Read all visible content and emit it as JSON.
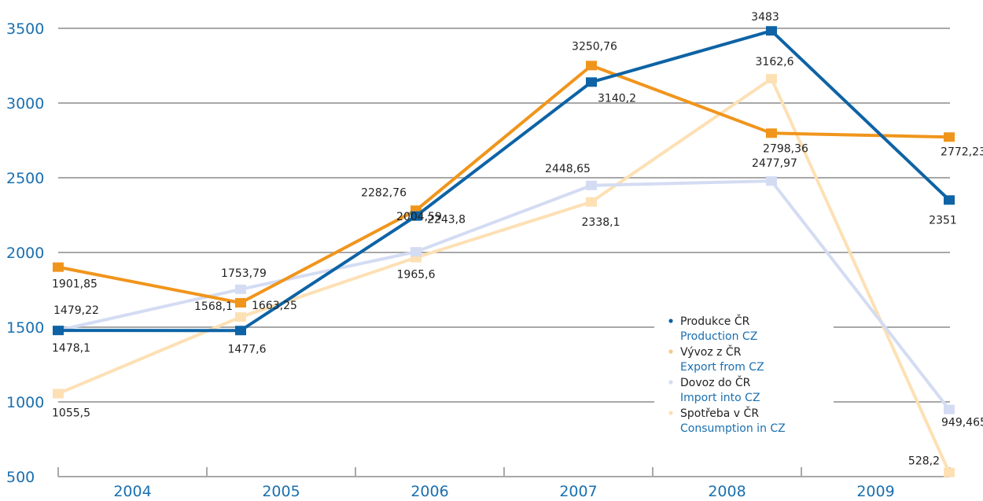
{
  "chart_data": {
    "type": "line",
    "categories": [
      "2004",
      "2005",
      "2006",
      "2007",
      "2008",
      "2009"
    ],
    "ylim": [
      500,
      3500
    ],
    "yticks": [
      "500",
      "1000",
      "1500",
      "2000",
      "2500",
      "3000",
      "3500"
    ],
    "grid": true,
    "legend_position": "bottom-right",
    "series": [
      {
        "name_cz": "Spotřeba v ČR",
        "name_en": "Consumption in CZ",
        "color": "#fde0b4",
        "values": [
          1055.5,
          1568.1,
          1965.6,
          2338.1,
          3162.6,
          528.2
        ],
        "labels": [
          "1055,5",
          "1568,1",
          "1965,6",
          "2338,1",
          "3162,6",
          "528,2"
        ]
      },
      {
        "name_cz": "Dovoz do ČR",
        "name_en": "Import into CZ",
        "color": "#d4dcf3",
        "values": [
          1479.22,
          1753.79,
          2004.59,
          2448.65,
          2477.97,
          949.465
        ],
        "labels": [
          "1479,22",
          "1753,79",
          "2004,59",
          "2448,65",
          "2477,97",
          "949,465"
        ]
      },
      {
        "name_cz": "Vývoz z ČR",
        "name_en": "Export from CZ",
        "color": "#f0951c",
        "values": [
          1901.85,
          1663.25,
          2282.76,
          3250.76,
          2798.36,
          2772.23
        ],
        "labels": [
          "1901,85",
          "1663,25",
          "2282,76",
          "3250,76",
          "2798,36",
          "2772,23"
        ]
      },
      {
        "name_cz": "Produkce ČR",
        "name_en": "Production CZ",
        "color": "#0d63a5",
        "values": [
          1478.1,
          1477.6,
          2243.8,
          3140.2,
          3483,
          2351
        ],
        "labels": [
          "1478,1",
          "1477,6",
          "2243,8",
          "3140,2",
          "3483",
          "2351"
        ]
      }
    ],
    "legend": [
      {
        "cz": "Produkce ČR",
        "en": "Production CZ",
        "color": "#0d63a5"
      },
      {
        "cz": "Vývoz z ČR",
        "en": "Export from CZ",
        "color": "#f5c98a"
      },
      {
        "cz": "Dovoz do ČR",
        "en": "Import into CZ",
        "color": "#d4dcf3"
      },
      {
        "cz": "Spotřeba v ČR",
        "en": "Consumption in CZ",
        "color": "#fde0b4"
      }
    ]
  }
}
